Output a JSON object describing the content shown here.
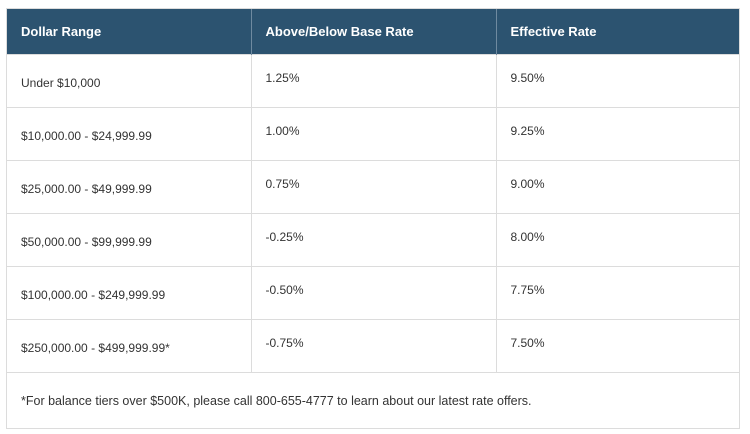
{
  "table": {
    "headers": [
      "Dollar Range",
      "Above/Below Base Rate",
      "Effective Rate"
    ],
    "rows": [
      {
        "range": "Under $10,000",
        "above_below": "1.25%",
        "effective": "9.50%"
      },
      {
        "range": "$10,000.00 - $24,999.99",
        "above_below": "1.00%",
        "effective": "9.25%"
      },
      {
        "range": "$25,000.00 - $49,999.99",
        "above_below": "0.75%",
        "effective": "9.00%"
      },
      {
        "range": "$50,000.00 - $99,999.99",
        "above_below": "-0.25%",
        "effective": "8.00%"
      },
      {
        "range": "$100,000.00 - $249,999.99",
        "above_below": "-0.50%",
        "effective": "7.75%"
      },
      {
        "range": "$250,000.00 - $499,999.99*",
        "above_below": "-0.75%",
        "effective": "7.50%"
      }
    ],
    "footnote": "*For balance tiers over $500K, please call 800-655-4777 to learn about our latest rate offers."
  },
  "colors": {
    "header_bg": "#2c5370",
    "header_text": "#ffffff",
    "border": "#dcdcdc",
    "body_text": "#333333"
  }
}
